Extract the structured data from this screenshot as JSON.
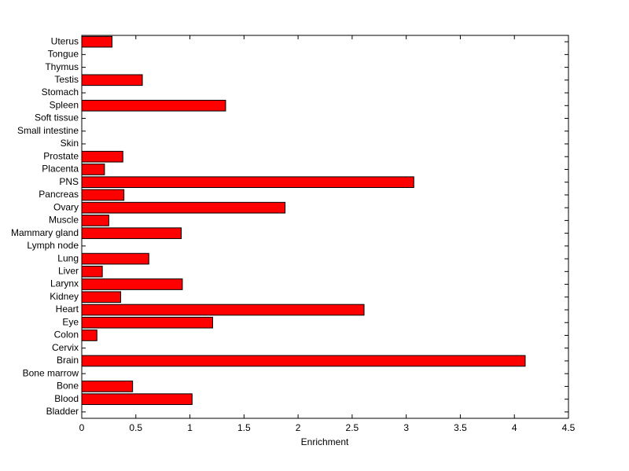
{
  "chart_data": {
    "type": "barh",
    "xlabel": "Enrichment",
    "categories": [
      "Bladder",
      "Blood",
      "Bone",
      "Bone marrow",
      "Brain",
      "Cervix",
      "Colon",
      "Eye",
      "Heart",
      "Kidney",
      "Larynx",
      "Liver",
      "Lung",
      "Lymph node",
      "Mammary gland",
      "Muscle",
      "Ovary",
      "Pancreas",
      "PNS",
      "Placenta",
      "Prostate",
      "Skin",
      "Small intestine",
      "Soft tissue",
      "Spleen",
      "Stomach",
      "Testis",
      "Thymus",
      "Tongue",
      "Uterus"
    ],
    "values": [
      0,
      1.02,
      0.47,
      0,
      4.1,
      0,
      0.14,
      1.21,
      2.61,
      0.36,
      0.93,
      0.19,
      0.62,
      0,
      0.92,
      0.25,
      1.88,
      0.39,
      3.07,
      0.21,
      0.38,
      0,
      0,
      0,
      1.33,
      0,
      0.56,
      0,
      0,
      0.28
    ],
    "color": "#ff0000",
    "xlim": [
      0,
      4.5
    ],
    "xticks": [
      0,
      0.5,
      1,
      1.5,
      2,
      2.5,
      3,
      3.5,
      4,
      4.5
    ]
  }
}
